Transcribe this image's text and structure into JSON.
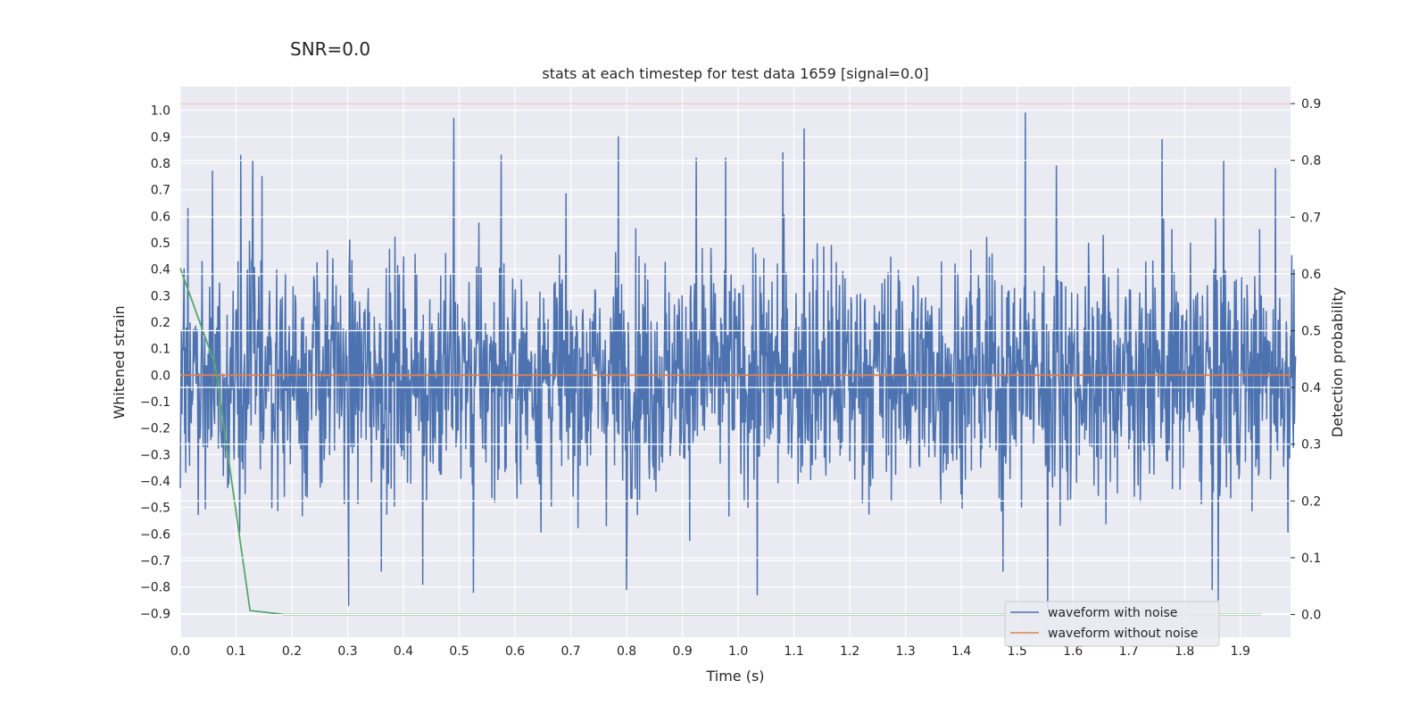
{
  "suptitle": "SNR=0.0",
  "chart_data": {
    "type": "line",
    "title": "stats at each timestep for test data 1659 [signal=0.0]",
    "xlabel": "Time (s)",
    "ylabel": "Whitened strain",
    "y2label": "Detection probability",
    "xlim": [
      0.0,
      1.99
    ],
    "ylim": [
      -0.99,
      1.09
    ],
    "y2lim": [
      -0.04,
      0.93
    ],
    "xticks": [
      "0.0",
      "0.1",
      "0.2",
      "0.3",
      "0.4",
      "0.5",
      "0.6",
      "0.7",
      "0.8",
      "0.9",
      "1.0",
      "1.1",
      "1.2",
      "1.3",
      "1.4",
      "1.5",
      "1.6",
      "1.7",
      "1.8",
      "1.9"
    ],
    "yticks": [
      "1.0",
      "0.9",
      "0.8",
      "0.7",
      "0.6",
      "0.5",
      "0.4",
      "0.3",
      "0.2",
      "0.1",
      "0.0",
      "−0.1",
      "−0.2",
      "−0.3",
      "−0.4",
      "−0.5",
      "−0.6",
      "−0.7",
      "−0.8",
      "−0.9"
    ],
    "y2ticks": [
      "0.9",
      "0.8",
      "0.7",
      "0.6",
      "0.5",
      "0.4",
      "0.3",
      "0.2",
      "0.1",
      "0.0"
    ],
    "grid": true,
    "legend_position": "lower-right",
    "legend": [
      "waveform with noise",
      "waveform without noise"
    ],
    "colors": {
      "noise": "#4c72b0",
      "clean": "#dd8452",
      "prob": "#55a868",
      "threshold": "#c44e52",
      "axes_bg": "#eaeaf2",
      "grid": "#ffffff"
    },
    "noise_series": {
      "name": "waveform with noise",
      "samples": 2048,
      "x_range": [
        0.0,
        1.999
      ],
      "std": 0.22,
      "peaks": [
        [
          0.014,
          0.63
        ],
        [
          0.058,
          0.77
        ],
        [
          0.077,
          -0.38
        ],
        [
          0.108,
          0.83
        ],
        [
          0.13,
          0.81
        ],
        [
          0.146,
          0.75
        ],
        [
          0.302,
          -0.87
        ],
        [
          0.36,
          -0.74
        ],
        [
          0.435,
          -0.79
        ],
        [
          0.49,
          0.97
        ],
        [
          0.525,
          -0.82
        ],
        [
          0.575,
          0.83
        ],
        [
          0.785,
          0.9
        ],
        [
          0.8,
          -0.81
        ],
        [
          0.925,
          0.82
        ],
        [
          0.978,
          0.82
        ],
        [
          1.034,
          -0.83
        ],
        [
          1.08,
          0.84
        ],
        [
          1.118,
          0.93
        ],
        [
          1.475,
          -0.74
        ],
        [
          1.515,
          0.99
        ],
        [
          1.555,
          -0.88
        ],
        [
          1.57,
          0.79
        ],
        [
          1.76,
          0.89
        ],
        [
          1.85,
          -0.81
        ],
        [
          1.86,
          -0.85
        ],
        [
          1.87,
          0.81
        ],
        [
          1.963,
          0.78
        ]
      ]
    },
    "clean_series": {
      "name": "waveform without noise",
      "x": [
        0.0,
        1.99
      ],
      "y": [
        0.0,
        0.0
      ]
    },
    "probability_series": {
      "name": "Detection probability",
      "axis": "right",
      "x": [
        0.0,
        0.0625,
        0.125,
        0.1875,
        0.25,
        0.5,
        1.0,
        1.5,
        1.9375
      ],
      "y": [
        0.61,
        0.44,
        0.007,
        0.0,
        0.0,
        0.0,
        0.0,
        0.0,
        0.0
      ]
    },
    "threshold_line": {
      "axis": "right",
      "value": 0.9
    }
  }
}
